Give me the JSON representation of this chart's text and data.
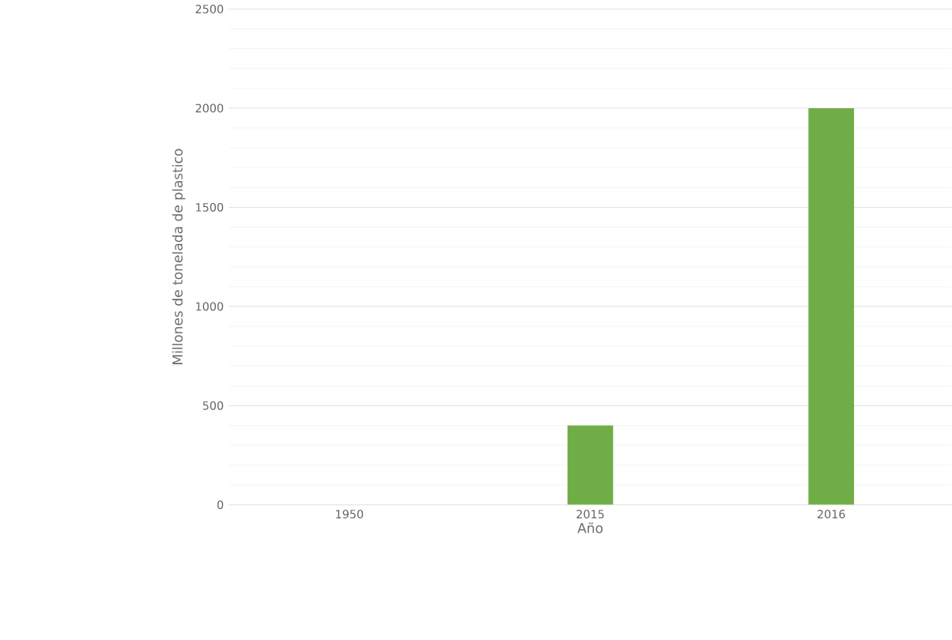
{
  "chart_data": {
    "type": "bar",
    "xlabel": "Año",
    "ylabel": "Millones de tonelada de plastico",
    "categories": [
      "1950",
      "2015",
      "2016"
    ],
    "values": [
      0,
      400,
      2000
    ],
    "color": "#70ad47",
    "ylim": [
      0,
      2500
    ],
    "yticks": [
      0,
      500,
      1000,
      1500,
      2000,
      2500
    ],
    "grid": "y"
  }
}
